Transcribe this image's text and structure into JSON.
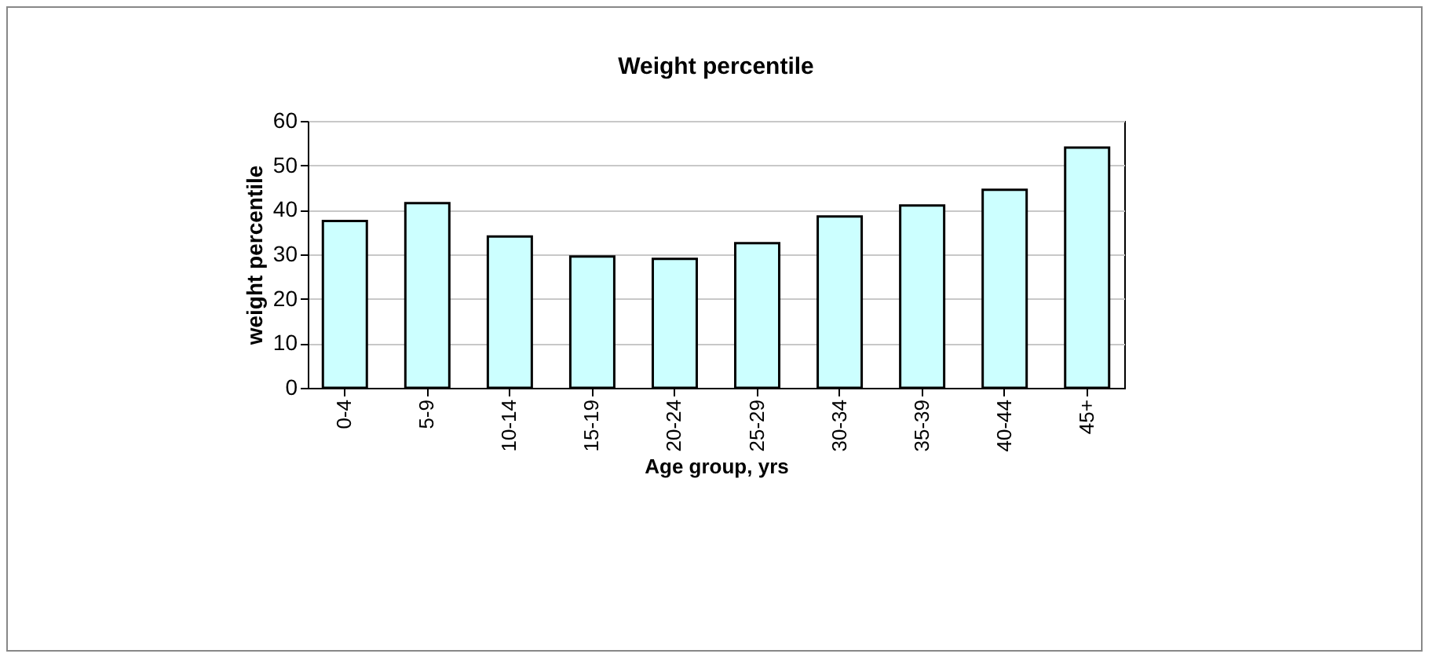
{
  "chart_data": {
    "type": "bar",
    "title": "Weight percentile",
    "xlabel": "Age group, yrs",
    "ylabel": "weight percentile",
    "categories": [
      "0-4",
      "5-9",
      "10-14",
      "15-19",
      "20-24",
      "25-29",
      "30-34",
      "35-39",
      "40-44",
      "45+"
    ],
    "values": [
      37.5,
      41.5,
      34,
      29.5,
      29,
      32.5,
      38.5,
      41,
      44.5,
      54
    ],
    "color": "#ccffff",
    "ylim": [
      0,
      60
    ],
    "yticks": [
      0,
      10,
      20,
      30,
      40,
      50,
      60
    ],
    "grid": "y"
  }
}
